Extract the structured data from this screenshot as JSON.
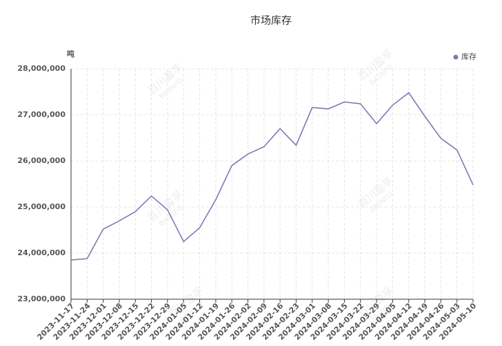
{
  "chart_data": {
    "type": "line",
    "title": "市场库存",
    "y_label": "吨",
    "watermark": [
      "百川盈孚",
      "BAIINFO"
    ],
    "categories": [
      "2023-11-17",
      "2023-11-24",
      "2023-12-01",
      "2023-12-08",
      "2023-12-15",
      "2023-12-22",
      "2023-12-29",
      "2024-01-05",
      "2024-01-12",
      "2024-01-19",
      "2024-01-26",
      "2024-02-02",
      "2024-02-09",
      "2024-02-16",
      "2024-02-23",
      "2024-03-01",
      "2024-03-08",
      "2024-03-15",
      "2024-03-22",
      "2024-03-29",
      "2024-04-05",
      "2024-04-12",
      "2024-04-19",
      "2024-04-26",
      "2024-05-03",
      "2024-05-10"
    ],
    "series": [
      {
        "name": "库存",
        "color": "#7f78b5",
        "values": [
          23850000,
          23880000,
          24520000,
          24700000,
          24900000,
          25240000,
          24940000,
          24250000,
          24550000,
          25160000,
          25900000,
          26150000,
          26310000,
          26700000,
          26340000,
          27160000,
          27130000,
          27280000,
          27240000,
          26810000,
          27210000,
          27480000,
          26970000,
          26490000,
          26240000,
          25480000
        ]
      }
    ],
    "ylim": [
      23000000,
      28000000
    ],
    "yticks": [
      {
        "value": 23000000,
        "label": "23,000,000"
      },
      {
        "value": 24000000,
        "label": "24,000,000"
      },
      {
        "value": 25000000,
        "label": "25,000,000"
      },
      {
        "value": 26000000,
        "label": "26,000,000"
      },
      {
        "value": 27000000,
        "label": "27,000,000"
      },
      {
        "value": 28000000,
        "label": "28,000,000"
      }
    ],
    "grid": true,
    "legend": "top-right"
  }
}
